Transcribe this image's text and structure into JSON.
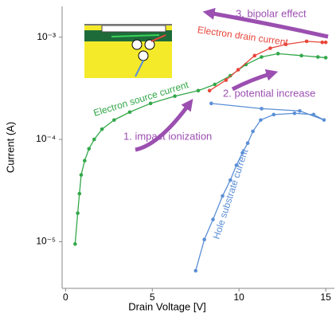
{
  "chart_data": {
    "type": "line",
    "x_label": "Drain Voltage [V]",
    "y_label": "Current (A)",
    "log_y": true,
    "xlim": [
      -0.2,
      15.5
    ],
    "ylim": [
      3.5e-06,
      0.002
    ],
    "xticks": [
      0,
      5,
      10,
      15
    ],
    "yticks": [
      {
        "value": 1e-05,
        "label": "10⁻⁵"
      },
      {
        "value": 0.0001,
        "label": "10⁻⁴"
      },
      {
        "value": 0.001,
        "label": "10⁻³"
      }
    ],
    "annotations": [
      "1. impact ionization",
      "2. potential increase",
      "3. bipolar effect"
    ],
    "series": [
      {
        "name": "Electron source current",
        "color": "#33a84a",
        "x": [
          0.55,
          0.7,
          0.8,
          0.9,
          1.1,
          1.35,
          1.65,
          2.1,
          2.8,
          3.7,
          4.9,
          6.3,
          7.65,
          8.6,
          9.5,
          10.4,
          11.3,
          12.25,
          13.6,
          14.55,
          15
        ],
        "values": [
          9.5e-06,
          1.9e-05,
          2.95e-05,
          4.5e-05,
          6.2e-05,
          8.1e-05,
          0.0001,
          0.000126,
          0.000155,
          0.000185,
          0.000225,
          0.000265,
          0.0003,
          0.000345,
          0.00042,
          0.00054,
          0.00064,
          0.00069,
          0.00066,
          0.00064,
          0.00063
        ]
      },
      {
        "name": "Electron drain current",
        "color": "#e8463c",
        "x": [
          8.3,
          9.25,
          9.95,
          10.9,
          11.8,
          12.7,
          13.9,
          14.8,
          15
        ],
        "values": [
          0.0003,
          0.00038,
          0.00048,
          0.00066,
          0.00078,
          0.00085,
          0.00091,
          0.00089,
          0.00089
        ]
      },
      {
        "name": "Hole substrate current",
        "color": "#5b8fd6",
        "x": [
          7.5,
          8.0,
          8.5,
          9.05,
          9.5,
          9.85,
          10.2,
          10.5,
          10.8,
          11.25,
          12.0,
          13.2,
          14.3,
          14.9,
          13.5,
          11.3,
          8.4
        ],
        "values": [
          5.2e-06,
          1.05e-05,
          1.65e-05,
          2.8e-05,
          4e-05,
          5.6e-05,
          7.4e-05,
          9.2e-05,
          0.00012,
          0.000155,
          0.000175,
          0.00018,
          0.000175,
          0.000155,
          0.00019,
          0.0002,
          0.000225
        ]
      }
    ]
  }
}
